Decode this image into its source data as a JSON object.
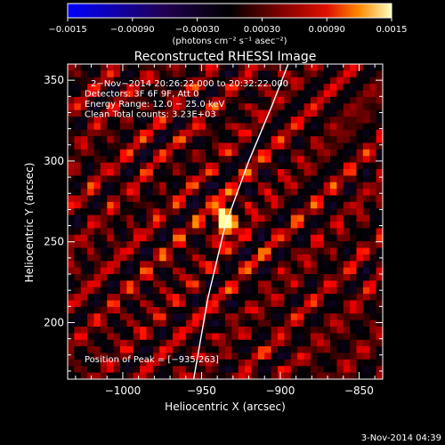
{
  "colorbar": {
    "ticks": [
      "-0.0015",
      "-0.00090",
      "-0.00030",
      "0.00030",
      "0.00090",
      "0.0015"
    ],
    "unit_label": "(photons cm⁻² s⁻¹ asec⁻²)",
    "colors": [
      "#0000ff",
      "#2a0050",
      "#000000",
      "#7a0000",
      "#e01000",
      "#ff8a00",
      "#ffffa0"
    ]
  },
  "chart_data": {
    "type": "heatmap",
    "title": "Reconstructed RHESSI Image",
    "xlabel": "Heliocentric X (arcsec)",
    "ylabel": "Heliocentric Y (arcsec)",
    "xlim": [
      -1035,
      -835
    ],
    "ylim": [
      165,
      360
    ],
    "xticks": [
      -1000,
      -950,
      -900,
      -850
    ],
    "yticks": [
      200,
      250,
      300,
      350
    ],
    "xtick_labels": [
      "−1000",
      "−950",
      "−900",
      "−850"
    ],
    "ytick_labels": [
      "200",
      "250",
      "300",
      "350"
    ],
    "peak": {
      "x": -935,
      "y": 263
    },
    "annotations": [
      "2−Nov−2014 20:26:22.000 to 20:32:22.000",
      "Detectors: 3F 6F 9F, Att 0",
      "Energy Range: 12.0 − 25.0 keV",
      "Clean     Total counts: 3.23E+03"
    ],
    "peak_label": "Position of Peak = [−935,263]",
    "limb_line": [
      [
        -955,
        165
      ],
      [
        -946,
        215
      ],
      [
        -935,
        260
      ],
      [
        -920,
        300
      ],
      [
        -905,
        335
      ],
      [
        -895,
        360
      ]
    ]
  },
  "footer": {
    "timestamp": "3-Nov-2014 04:39"
  }
}
